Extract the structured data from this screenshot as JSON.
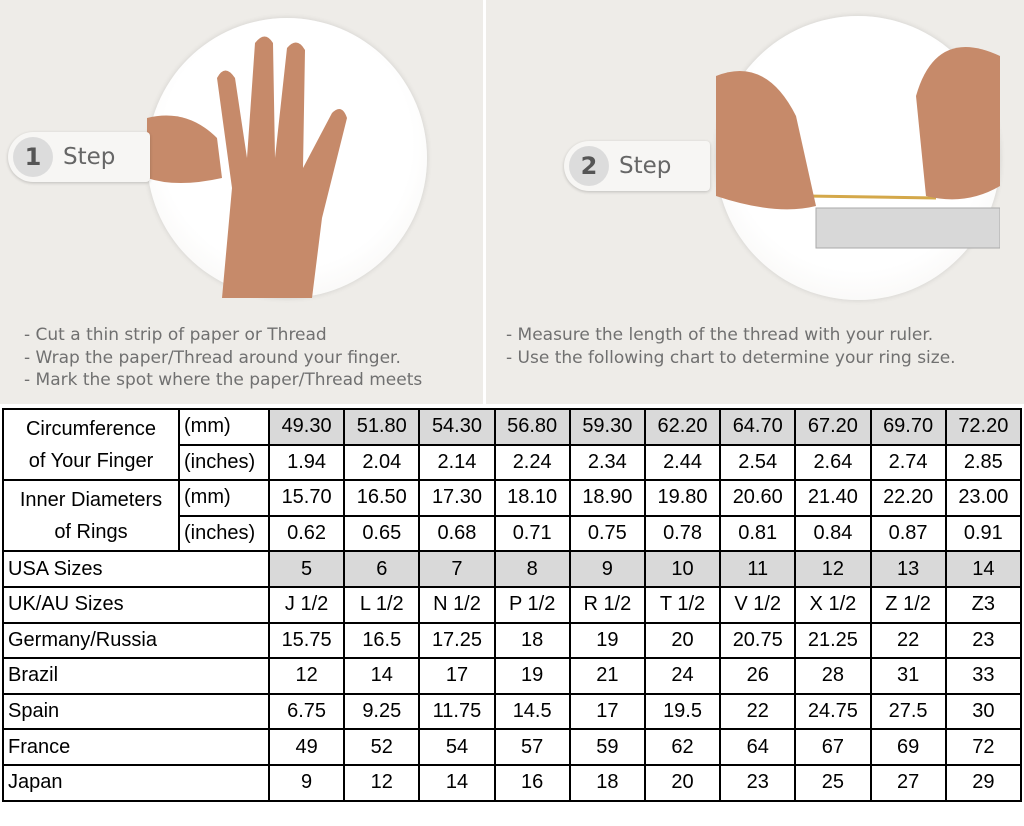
{
  "steps": [
    {
      "number": "1",
      "label": "Step",
      "instructions": [
        "-  Cut a thin strip of paper or Thread",
        "-  Wrap the paper/Thread around your finger.",
        "-  Mark the spot where the paper/Thread meets"
      ]
    },
    {
      "number": "2",
      "label": "Step",
      "instructions": [
        "-  Measure the length of the thread with your ruler.",
        "-  Use the following chart to determine your ring size."
      ]
    }
  ],
  "table": {
    "measurements": [
      {
        "label": [
          "Circumference",
          "of Your Finger"
        ],
        "rows": [
          {
            "unit": "(mm)",
            "values": [
              "49.30",
              "51.80",
              "54.30",
              "56.80",
              "59.30",
              "62.20",
              "64.70",
              "67.20",
              "69.70",
              "72.20"
            ]
          },
          {
            "unit": "(inches)",
            "values": [
              "1.94",
              "2.04",
              "2.14",
              "2.24",
              "2.34",
              "2.44",
              "2.54",
              "2.64",
              "2.74",
              "2.85"
            ]
          }
        ]
      },
      {
        "label": [
          "Inner Diameters",
          "of Rings"
        ],
        "rows": [
          {
            "unit": "(mm)",
            "values": [
              "15.70",
              "16.50",
              "17.30",
              "18.10",
              "18.90",
              "19.80",
              "20.60",
              "21.40",
              "22.20",
              "23.00"
            ]
          },
          {
            "unit": "(inches)",
            "values": [
              "0.62",
              "0.65",
              "0.68",
              "0.71",
              "0.75",
              "0.78",
              "0.81",
              "0.84",
              "0.87",
              "0.91"
            ]
          }
        ]
      }
    ],
    "sizes": [
      {
        "label": "USA Sizes",
        "values": [
          "5",
          "6",
          "7",
          "8",
          "9",
          "10",
          "11",
          "12",
          "13",
          "14"
        ]
      },
      {
        "label": "UK/AU Sizes",
        "values": [
          "J 1/2",
          "L 1/2",
          "N 1/2",
          "P 1/2",
          "R 1/2",
          "T 1/2",
          "V 1/2",
          "X 1/2",
          "Z 1/2",
          "Z3"
        ]
      },
      {
        "label": "Germany/Russia",
        "values": [
          "15.75",
          "16.5",
          "17.25",
          "18",
          "19",
          "20",
          "20.75",
          "21.25",
          "22",
          "23"
        ]
      },
      {
        "label": "Brazil",
        "values": [
          "12",
          "14",
          "17",
          "19",
          "21",
          "24",
          "26",
          "28",
          "31",
          "33"
        ]
      },
      {
        "label": "Spain",
        "values": [
          "6.75",
          "9.25",
          "11.75",
          "14.5",
          "17",
          "19.5",
          "22",
          "24.75",
          "27.5",
          "30"
        ]
      },
      {
        "label": "France",
        "values": [
          "49",
          "52",
          "54",
          "57",
          "59",
          "62",
          "64",
          "67",
          "69",
          "72"
        ]
      },
      {
        "label": "Japan",
        "values": [
          "9",
          "12",
          "14",
          "16",
          "18",
          "20",
          "23",
          "25",
          "27",
          "29"
        ]
      }
    ]
  }
}
